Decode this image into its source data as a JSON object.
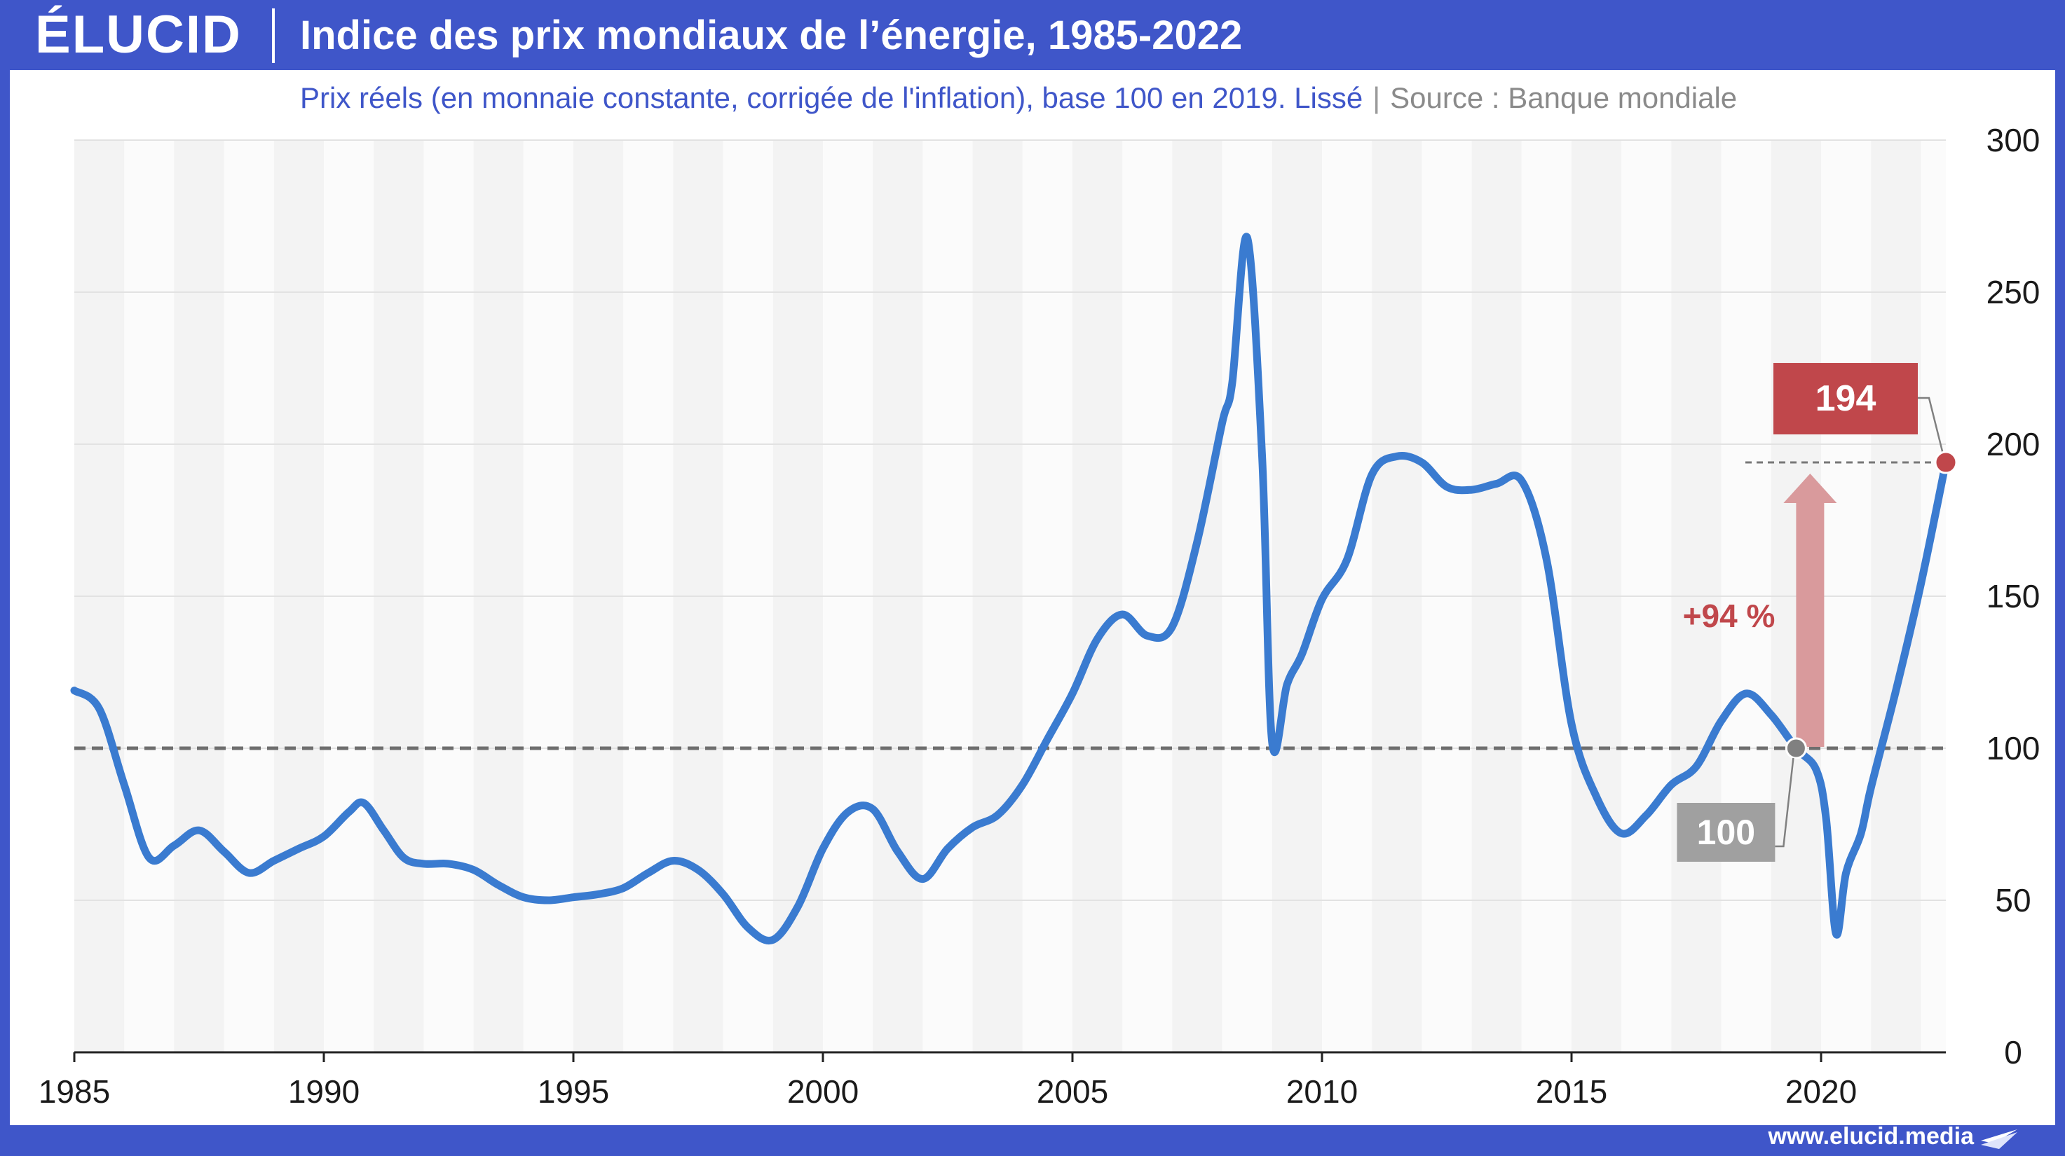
{
  "header": {
    "logo": "ÉLUCID",
    "title": "Indice des prix mondiaux de l’énergie, 1985-2022",
    "subtitle": "Prix réels (en monnaie constante, corrigée de l'inflation), base 100 en 2019. Lissé",
    "separator": "|",
    "source": "Source : Banque mondiale"
  },
  "footer": {
    "url": "www.elucid.media"
  },
  "colors": {
    "brand": "#3f56c9",
    "line": "#3a7bd0",
    "highlight_red": "#c0474b",
    "arrow_red": "#d99a9c",
    "base_grey": "#a0a0a0"
  },
  "chart_data": {
    "type": "line",
    "title": "Indice des prix mondiaux de l’énergie, 1985-2022",
    "xlabel": "",
    "ylabel": "",
    "xlim": [
      1985,
      2022.5
    ],
    "ylim": [
      0,
      300
    ],
    "x_ticks": [
      1985,
      1990,
      1995,
      2000,
      2005,
      2010,
      2015,
      2020
    ],
    "x_tick_labels": [
      "1985",
      "1990",
      "1995",
      "2000",
      "2005",
      "2010",
      "2015",
      "2020"
    ],
    "y_ticks": [
      0,
      50,
      100,
      150,
      200,
      250,
      300
    ],
    "y_tick_labels": [
      "0",
      "50",
      "100",
      "150",
      "200",
      "250",
      "300"
    ],
    "y_axis_side": "right",
    "grid": true,
    "reference_line": {
      "y": 100,
      "style": "dashed"
    },
    "series": [
      {
        "x": [
          1985,
          1985.5,
          1986,
          1986.5,
          1987,
          1987.5,
          1988,
          1988.5,
          1989,
          1989.5,
          1990,
          1990.5,
          1990.8,
          1991.2,
          1991.6,
          1992,
          1992.5,
          1993,
          1993.5,
          1994,
          1994.5,
          1995,
          1995.5,
          1996,
          1996.5,
          1997,
          1997.5,
          1998,
          1998.5,
          1999,
          1999.5,
          2000,
          2000.5,
          2001,
          2001.5,
          2002,
          2002.5,
          2003,
          2003.5,
          2004,
          2004.5,
          2005,
          2005.5,
          2006,
          2006.5,
          2007,
          2007.5,
          2008,
          2008.2,
          2008.5,
          2008.8,
          2009,
          2009.3,
          2009.6,
          2010,
          2010.5,
          2011,
          2011.5,
          2012,
          2012.5,
          2013,
          2013.5,
          2014,
          2014.5,
          2015,
          2015.5,
          2016,
          2016.5,
          2017,
          2017.5,
          2018,
          2018.5,
          2019,
          2019.5,
          2019.9,
          2020.1,
          2020.3,
          2020.5,
          2020.8,
          2021,
          2021.5,
          2022,
          2022.5
        ],
        "y": [
          119,
          113,
          88,
          64,
          68,
          73,
          66,
          59,
          63,
          67,
          71,
          79,
          82,
          73,
          64,
          62,
          62,
          60,
          55,
          51,
          50,
          51,
          52,
          54,
          59,
          63,
          60,
          52,
          41,
          37,
          48,
          67,
          79,
          80,
          66,
          57,
          67,
          74,
          78,
          88,
          103,
          118,
          136,
          144,
          137,
          140,
          168,
          207,
          220,
          268,
          196,
          102,
          121,
          131,
          149,
          162,
          190,
          196,
          194,
          186,
          185,
          187,
          188,
          162,
          108,
          84,
          72,
          78,
          88,
          94,
          109,
          118,
          111,
          100,
          93,
          77,
          39,
          59,
          72,
          87,
          119,
          154,
          194
        ]
      }
    ],
    "annotations": [
      {
        "label": "100",
        "x": 2019.5,
        "y": 100,
        "marker": "grey"
      },
      {
        "label": "194",
        "x": 2022.5,
        "y": 194,
        "marker": "red"
      },
      {
        "label": "+94 %",
        "from_y": 100,
        "to_y": 194,
        "kind": "arrow"
      }
    ]
  }
}
